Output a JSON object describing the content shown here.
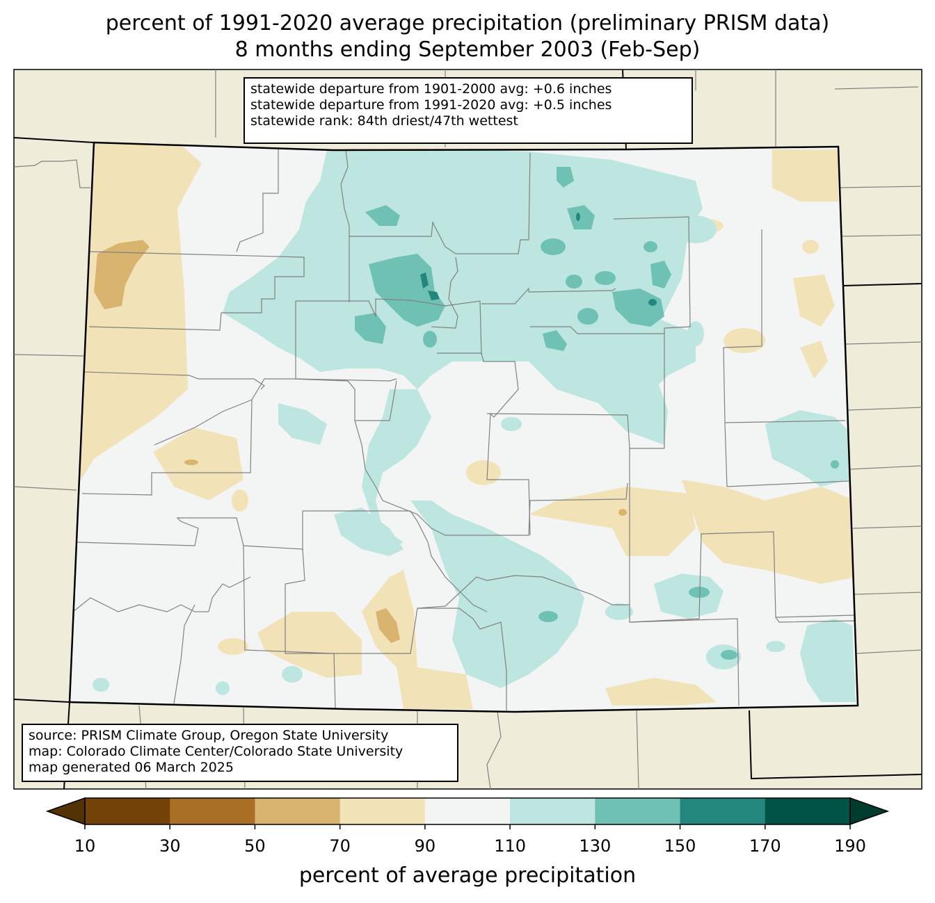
{
  "title": {
    "line1": "percent of 1991-2020 average precipitation (preliminary PRISM data)",
    "line2": "8 months ending September 2003 (Feb-Sep)"
  },
  "stats": {
    "line1": "statewide departure from 1901-2000 avg: +0.6 inches",
    "line2": "statewide departure from 1991-2020 avg: +0.5 inches",
    "line3": "statewide rank: 84th driest/47th wettest"
  },
  "source": {
    "line1": "source: PRISM Climate Group, Oregon State University",
    "line2": "map: Colorado Climate Center/Colorado State University",
    "line3": "map generated 06 March 2025"
  },
  "colorbar": {
    "label": "percent of average precipitation",
    "ticks": [
      "10",
      "30",
      "50",
      "70",
      "90",
      "110",
      "130",
      "150",
      "170",
      "190"
    ],
    "colors": [
      "#744309",
      "#a96f25",
      "#d8b46f",
      "#f2e2b8",
      "#f3f5f4",
      "#bde6e0",
      "#6fc1b4",
      "#23877d",
      "#005446"
    ],
    "under_color": "#533205",
    "over_color": "#003b2f"
  },
  "colors": {
    "background_land": "#efedda",
    "state_border": "#000000",
    "county_border": "#808080"
  }
}
